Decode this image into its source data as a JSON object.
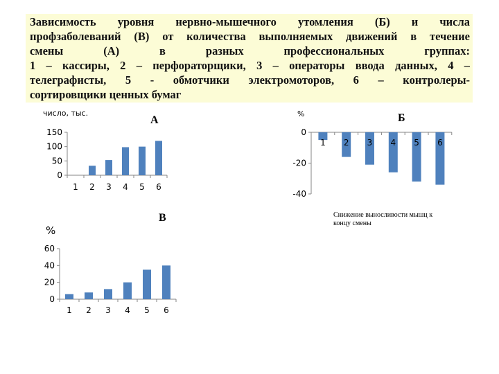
{
  "header": {
    "lines": [
      "Зависимость уровня нервно-мышечного утомления (Б) и числа",
      "профзаболеваний (В) от количества выполняемых движений в течение",
      "смены (А) в разных профессиональных группах:",
      "1 – кассиры, 2 – перфораторщики, 3 – операторы ввода данных, 4 –",
      "телеграфисты, 5 - обмотчики электромоторов, 6 – контролеры-",
      "сортировщики ценных бумаг"
    ]
  },
  "colors": {
    "bar": "#4f81bd",
    "axis": "#868686",
    "header_bg": "#fcfcd6"
  },
  "chart_data": [
    {
      "id": "A",
      "type": "bar",
      "title": "А",
      "ylabel": "число, тыс.",
      "categories": [
        "1",
        "2",
        "3",
        "4",
        "5",
        "6"
      ],
      "values": [
        0,
        33,
        53,
        98,
        100,
        120
      ],
      "ylim": [
        0,
        150
      ],
      "yticks": [
        0,
        50,
        100,
        150
      ],
      "grid": false
    },
    {
      "id": "B",
      "type": "bar",
      "title": "Б",
      "ylabel": "%",
      "categories": [
        "1",
        "2",
        "3",
        "4",
        "5",
        "6"
      ],
      "values": [
        -5,
        -16,
        -21,
        -26,
        -32,
        -34
      ],
      "ylim": [
        -40,
        0
      ],
      "yticks": [
        0,
        -20,
        -40
      ],
      "caption_lines": [
        "Снижение выносливости мышц к",
        "концу смены"
      ],
      "grid": false
    },
    {
      "id": "C",
      "type": "bar",
      "title": "В",
      "ylabel": "%",
      "categories": [
        "1",
        "2",
        "3",
        "4",
        "5",
        "6"
      ],
      "values": [
        6,
        8,
        12,
        20,
        35,
        40
      ],
      "ylim": [
        0,
        60
      ],
      "yticks": [
        0,
        20,
        40,
        60
      ],
      "grid": false
    }
  ]
}
